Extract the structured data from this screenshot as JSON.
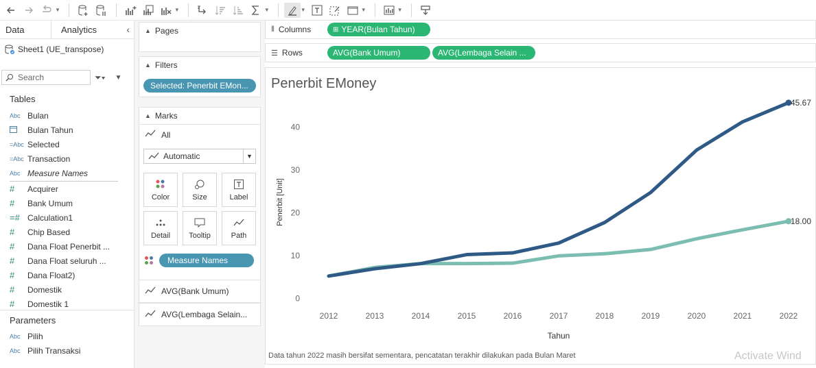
{
  "toolbar": {
    "icons": [
      "back-icon",
      "forward-icon",
      "redo-icon",
      "caret-icon",
      "new-datasource-icon",
      "pause-icon",
      "add-chart-icon",
      "duplicate-chart-icon",
      "clear-chart-icon",
      "swap-icon",
      "sort-asc-icon",
      "sort-desc-icon",
      "totals-icon",
      "highlight-icon",
      "label-icon",
      "annotate-icon",
      "fit-icon",
      "show-me-icon",
      "presentation-icon"
    ]
  },
  "left_pane": {
    "tab_data": "Data",
    "tab_analytics": "Analytics",
    "collapse_glyph": "‹",
    "datasource": "Sheet1 (UE_transpose)",
    "search_placeholder": "Search",
    "tables_title": "Tables",
    "dimensions": [
      {
        "type": "Abc",
        "name": "Bulan"
      },
      {
        "type": "date",
        "name": "Bulan Tahun"
      },
      {
        "type": "=Abc",
        "name": "Selected"
      },
      {
        "type": "=Abc",
        "name": "Transaction"
      },
      {
        "type": "Abc",
        "name": "Measure Names"
      }
    ],
    "measures": [
      {
        "type": "#",
        "name": "Acquirer"
      },
      {
        "type": "#",
        "name": "Bank Umum"
      },
      {
        "type": "=#",
        "name": "Calculation1"
      },
      {
        "type": "#",
        "name": "Chip Based"
      },
      {
        "type": "#",
        "name": "Dana Float Penerbit ..."
      },
      {
        "type": "#",
        "name": "Dana Float seluruh ..."
      },
      {
        "type": "#",
        "name": "Dana Float2)"
      },
      {
        "type": "#",
        "name": "Domestik"
      },
      {
        "type": "#",
        "name": "Domestik 1"
      }
    ],
    "parameters_title": "Parameters",
    "parameters": [
      {
        "type": "Abc",
        "name": "Pilih"
      },
      {
        "type": "Abc",
        "name": "Pilih Transaksi"
      }
    ]
  },
  "shelves": {
    "pages_title": "Pages",
    "filters_title": "Filters",
    "filter_pill": "Selected: Penerbit EMon...",
    "marks_title": "Marks",
    "marks_all": "All",
    "mark_type": "Automatic",
    "buttons": {
      "color": "Color",
      "size": "Size",
      "label": "Label",
      "detail": "Detail",
      "tooltip": "Tooltip",
      "path": "Path"
    },
    "measure_names_pill": "Measure Names",
    "marks_sub1": "AVG(Bank Umum)",
    "marks_sub2": "AVG(Lembaga Selain...",
    "columns_label": "Columns",
    "columns_pill": "YEAR(Bulan Tahun)",
    "rows_label": "Rows",
    "rows_pill1": "AVG(Bank Umum)",
    "rows_pill2": "AVG(Lembaga Selain ..."
  },
  "viz": {
    "footnote": "Data tahun 2022 masih bersifat sementara, pencatatan terakhir dilakukan pada Bulan Maret",
    "watermark": "Activate Wind"
  },
  "colors": {
    "series_dark": "#2f5a86",
    "series_light": "#7bbdb0",
    "pill_blue": "#4996b2",
    "pill_green": "#2bb673"
  },
  "chart_data": {
    "type": "line",
    "title": "Penerbit EMoney",
    "xlabel": "Tahun",
    "ylabel": "Penerbit [Unit]",
    "x": [
      "2012",
      "2013",
      "2014",
      "2015",
      "2016",
      "2017",
      "2018",
      "2019",
      "2020",
      "2021",
      "2022"
    ],
    "yticks": [
      "0",
      "10",
      "20",
      "30",
      "40"
    ],
    "ylim": [
      -4,
      50
    ],
    "grid": false,
    "series": [
      {
        "name": "AVG(Bank Umum)",
        "values": [
          5.2,
          6.9,
          8.1,
          10.2,
          10.6,
          12.9,
          17.7,
          24.7,
          34.6,
          41.2,
          45.67
        ],
        "end_label": "45.67"
      },
      {
        "name": "AVG(Lembaga Selain ...",
        "values": [
          5.2,
          7.2,
          8.1,
          8.1,
          8.2,
          9.9,
          10.4,
          11.4,
          13.9,
          16.0,
          18.0
        ],
        "end_label": "18.00"
      }
    ]
  }
}
